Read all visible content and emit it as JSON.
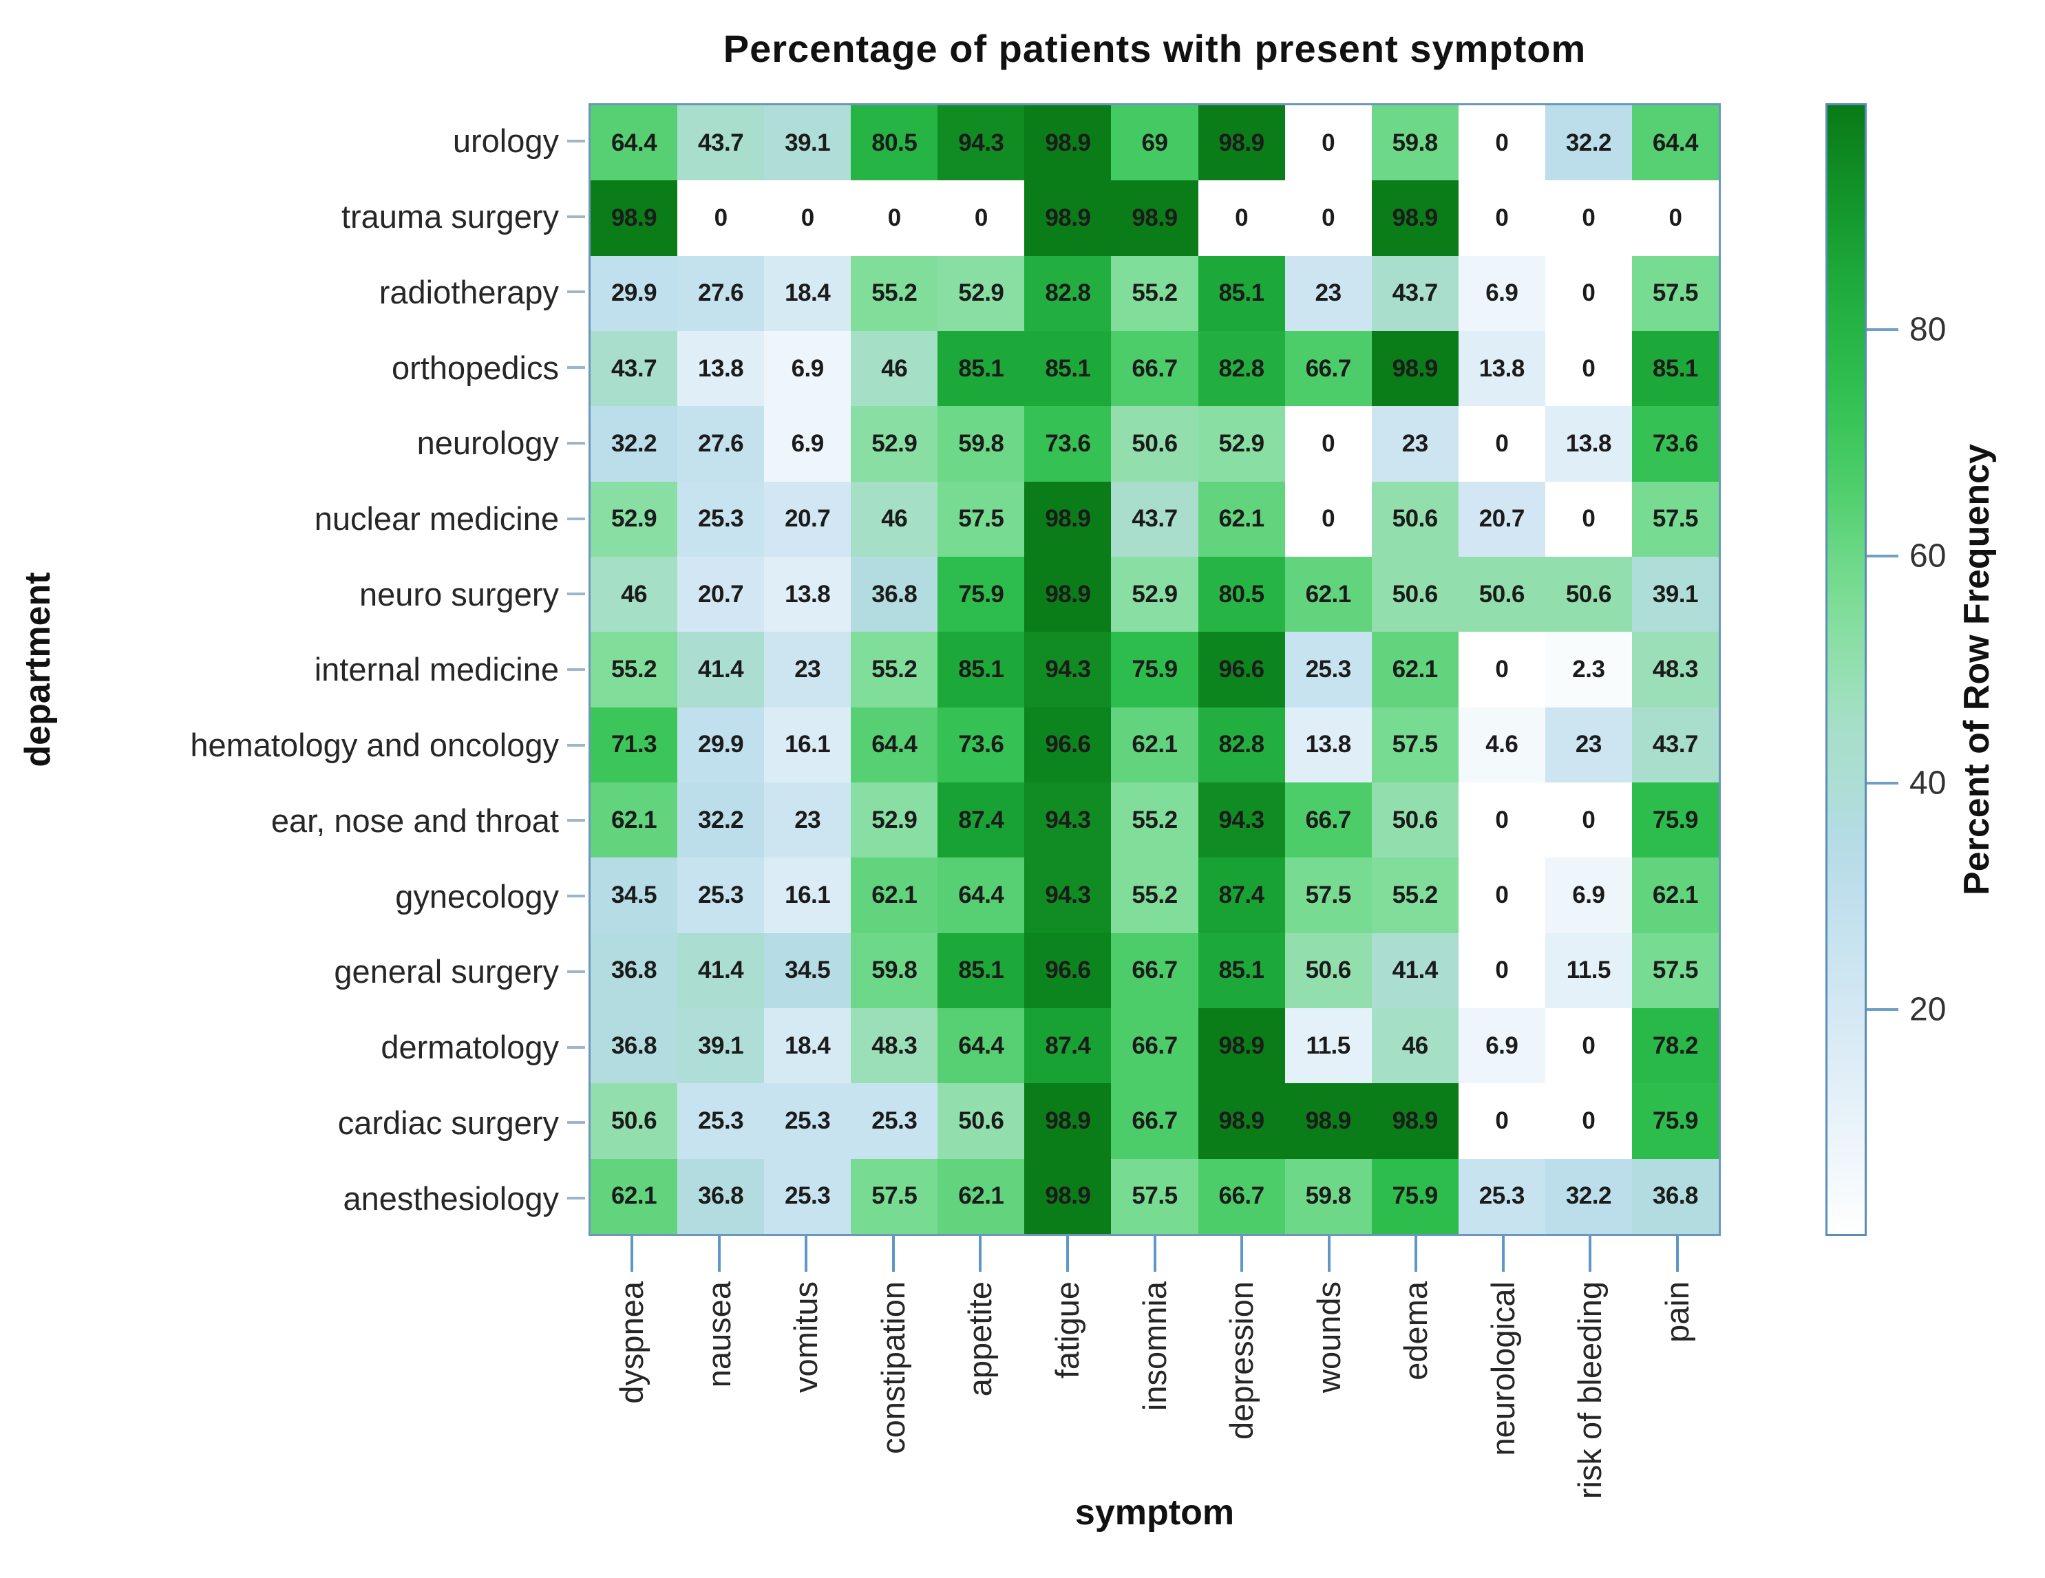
{
  "title": "Percentage of patients with present symptom",
  "x_axis_title": "symptom",
  "y_axis_title": "department",
  "colorbar": {
    "label": "Percent of Row Frequency",
    "ticks": [
      80,
      60,
      40,
      20
    ],
    "min": 0,
    "max": 100,
    "border_color": "#5b8db8",
    "tick_color": "#6f9fc4"
  },
  "chart_data": {
    "type": "heatmap",
    "title": "Percentage of patients with present symptom",
    "xlabel": "symptom",
    "ylabel": "department",
    "legend_label": "Percent of Row Frequency",
    "columns": [
      "dyspnea",
      "nausea",
      "vomitus",
      "constipation",
      "appetite",
      "fatigue",
      "insomnia",
      "depression",
      "wounds",
      "edema",
      "neurological",
      "risk of bleeding",
      "pain"
    ],
    "rows": [
      "urology",
      "trauma surgery",
      "radiotherapy",
      "orthopedics",
      "neurology",
      "nuclear medicine",
      "neuro surgery",
      "internal medicine",
      "hematology and oncology",
      "ear, nose and throat",
      "gynecology",
      "general surgery",
      "dermatology",
      "cardiac surgery",
      "anesthesiology"
    ],
    "values": [
      [
        64.4,
        43.7,
        39.1,
        80.5,
        94.3,
        98.9,
        69,
        98.9,
        0,
        59.8,
        0,
        32.2,
        64.4
      ],
      [
        98.9,
        0,
        0,
        0,
        0,
        98.9,
        98.9,
        0,
        0,
        98.9,
        0,
        0,
        0
      ],
      [
        29.9,
        27.6,
        18.4,
        55.2,
        52.9,
        82.8,
        55.2,
        85.1,
        23,
        43.7,
        6.9,
        0,
        57.5
      ],
      [
        43.7,
        13.8,
        6.9,
        46,
        85.1,
        85.1,
        66.7,
        82.8,
        66.7,
        98.9,
        13.8,
        0,
        85.1
      ],
      [
        32.2,
        27.6,
        6.9,
        52.9,
        59.8,
        73.6,
        50.6,
        52.9,
        0,
        23,
        0,
        13.8,
        73.6
      ],
      [
        52.9,
        25.3,
        20.7,
        46,
        57.5,
        98.9,
        43.7,
        62.1,
        0,
        50.6,
        20.7,
        0,
        57.5
      ],
      [
        46,
        20.7,
        13.8,
        36.8,
        75.9,
        98.9,
        52.9,
        80.5,
        62.1,
        50.6,
        50.6,
        50.6,
        39.1
      ],
      [
        55.2,
        41.4,
        23,
        55.2,
        85.1,
        94.3,
        75.9,
        96.6,
        25.3,
        62.1,
        0,
        2.3,
        48.3
      ],
      [
        71.3,
        29.9,
        16.1,
        64.4,
        73.6,
        96.6,
        62.1,
        82.8,
        13.8,
        57.5,
        4.6,
        23,
        43.7
      ],
      [
        62.1,
        32.2,
        23,
        52.9,
        87.4,
        94.3,
        55.2,
        94.3,
        66.7,
        50.6,
        0,
        0,
        75.9
      ],
      [
        34.5,
        25.3,
        16.1,
        62.1,
        64.4,
        94.3,
        55.2,
        87.4,
        57.5,
        55.2,
        0,
        6.9,
        62.1
      ],
      [
        36.8,
        41.4,
        34.5,
        59.8,
        85.1,
        96.6,
        66.7,
        85.1,
        50.6,
        41.4,
        0,
        11.5,
        57.5
      ],
      [
        36.8,
        39.1,
        18.4,
        48.3,
        64.4,
        87.4,
        66.7,
        98.9,
        11.5,
        46,
        6.9,
        0,
        78.2
      ],
      [
        50.6,
        25.3,
        25.3,
        25.3,
        50.6,
        98.9,
        66.7,
        98.9,
        98.9,
        98.9,
        0,
        0,
        75.9
      ],
      [
        62.1,
        36.8,
        25.3,
        57.5,
        62.1,
        98.9,
        57.5,
        66.7,
        59.8,
        75.9,
        25.3,
        32.2,
        36.8
      ]
    ],
    "value_range": [
      0,
      100
    ],
    "grid": false,
    "legend_position": "right",
    "color_stops": [
      [
        0,
        255,
        255,
        255
      ],
      [
        6,
        240,
        247,
        251
      ],
      [
        14,
        224,
        238,
        247
      ],
      [
        20,
        211,
        232,
        243
      ],
      [
        27,
        197,
        226,
        239
      ],
      [
        34,
        183,
        220,
        232
      ],
      [
        40,
        173,
        221,
        212
      ],
      [
        46,
        165,
        223,
        197
      ],
      [
        52,
        140,
        223,
        166
      ],
      [
        58,
        117,
        219,
        144
      ],
      [
        64,
        88,
        209,
        116
      ],
      [
        70,
        64,
        200,
        94
      ],
      [
        76,
        45,
        189,
        76
      ],
      [
        82,
        35,
        177,
        66
      ],
      [
        88,
        24,
        160,
        50
      ],
      [
        94,
        16,
        141,
        36
      ],
      [
        100,
        9,
        122,
        23
      ]
    ]
  }
}
